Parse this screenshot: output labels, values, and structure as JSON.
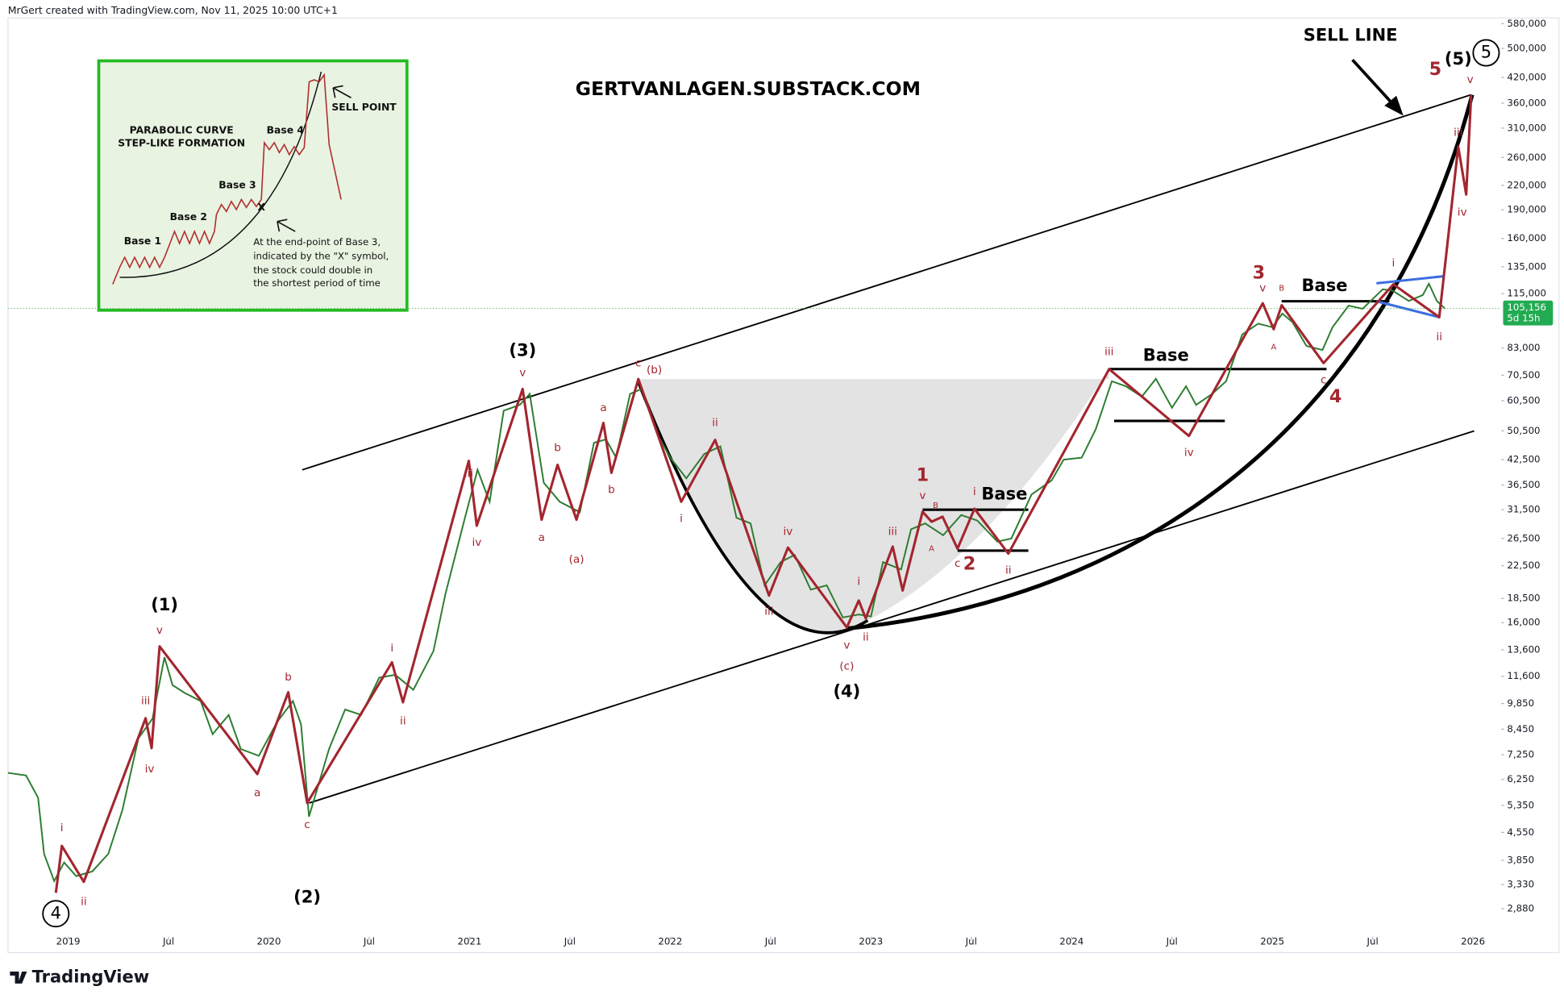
{
  "header": "MrGert created with TradingView.com, Nov 11, 2025 10:00 UTC+1",
  "brand": "TradingView",
  "inset": {
    "title": [
      "PARABOLIC CURVE",
      "STEP-LIKE FORMATION"
    ],
    "bases": [
      "Base 1",
      "Base 2",
      "Base 3",
      "Base 4"
    ],
    "x_mark": "X",
    "sell_point": "SELL POINT",
    "note": [
      "At the end-point of Base 3,",
      "indicated by the \"X\" symbol,",
      "the stock could double in",
      "the shortest period of time"
    ]
  },
  "chart_data": {
    "type": "line",
    "title": "GERTVANLAGEN.SUBSTACK.COM",
    "log_scale": true,
    "color": "#2e7d32",
    "x": [
      2018.7,
      2018.79,
      2018.85,
      2018.88,
      2018.93,
      2018.98,
      2019.04,
      2019.12,
      2019.2,
      2019.27,
      2019.35,
      2019.42,
      2019.48,
      2019.52,
      2019.58,
      2019.66,
      2019.72,
      2019.8,
      2019.86,
      2019.95,
      2020.04,
      2020.12,
      2020.16,
      2020.2,
      2020.3,
      2020.38,
      2020.46,
      2020.55,
      2020.63,
      2020.72,
      2020.82,
      2020.88,
      2020.97,
      2021.04,
      2021.1,
      2021.17,
      2021.25,
      2021.3,
      2021.37,
      2021.45,
      2021.55,
      2021.62,
      2021.68,
      2021.73,
      2021.8,
      2021.86,
      2021.94,
      2022.0,
      2022.08,
      2022.17,
      2022.25,
      2022.33,
      2022.4,
      2022.47,
      2022.55,
      2022.62,
      2022.7,
      2022.78,
      2022.86,
      2022.94,
      2023.0,
      2023.06,
      2023.15,
      2023.2,
      2023.27,
      2023.36,
      2023.45,
      2023.53,
      2023.63,
      2023.7,
      2023.8,
      2023.9,
      2023.96,
      2024.05,
      2024.12,
      2024.2,
      2024.27,
      2024.35,
      2024.42,
      2024.5,
      2024.57,
      2024.62,
      2024.7,
      2024.77,
      2024.85,
      2024.93,
      2025.0,
      2025.05,
      2025.1,
      2025.17,
      2025.25,
      2025.3,
      2025.38,
      2025.45,
      2025.55,
      2025.6,
      2025.68,
      2025.75,
      2025.78,
      2025.82,
      2025.86
    ],
    "values": [
      6500,
      6400,
      5600,
      4000,
      3400,
      3800,
      3500,
      3600,
      4000,
      5200,
      8000,
      9000,
      13000,
      11000,
      10500,
      10000,
      8200,
      9200,
      7500,
      7200,
      8800,
      10000,
      8700,
      5000,
      7500,
      9500,
      9200,
      11500,
      11700,
      10700,
      13500,
      19000,
      29000,
      40000,
      33000,
      57000,
      59000,
      63000,
      37000,
      33000,
      31000,
      47000,
      48000,
      43000,
      63000,
      65000,
      49000,
      43000,
      38000,
      44000,
      46000,
      30000,
      29000,
      20000,
      23000,
      24000,
      19500,
      20000,
      16500,
      16800,
      16600,
      23000,
      22000,
      28000,
      29000,
      27000,
      30500,
      29500,
      26000,
      26500,
      34500,
      37500,
      42500,
      43000,
      51000,
      68000,
      66000,
      62000,
      69000,
      58000,
      66000,
      59000,
      63000,
      68000,
      90000,
      96000,
      94000,
      102000,
      97000,
      84000,
      82000,
      94000,
      107000,
      105000,
      118000,
      117000,
      110000,
      114000,
      122000,
      110000,
      105156
    ],
    "xlim": [
      2018.7,
      2026.14
    ],
    "ylim": [
      2450,
      600000
    ],
    "xticks": [
      2019,
      {
        "value": 2019.5,
        "label": "Jul"
      },
      2020,
      {
        "value": 2020.5,
        "label": "Jul"
      },
      2021,
      {
        "value": 2021.5,
        "label": "Jul"
      },
      2022,
      {
        "value": 2022.5,
        "label": "Jul"
      },
      2023,
      {
        "value": 2023.5,
        "label": "Jul"
      },
      2024,
      {
        "value": 2024.5,
        "label": "Jul"
      },
      2025,
      {
        "value": 2025.5,
        "label": "Jul"
      },
      2026
    ],
    "yticks": [
      {
        "value": 580000,
        "label": "580,000"
      },
      {
        "value": 500000,
        "label": "500,000"
      },
      {
        "value": 420000,
        "label": "420,000"
      },
      {
        "value": 360000,
        "label": "360,000"
      },
      {
        "value": 310000,
        "label": "310,000"
      },
      {
        "value": 260000,
        "label": "260,000"
      },
      {
        "value": 220000,
        "label": "220,000"
      },
      {
        "value": 190000,
        "label": "190,000"
      },
      {
        "value": 160000,
        "label": "160,000"
      },
      {
        "value": 135000,
        "label": "135,000"
      },
      {
        "value": 115000,
        "label": "115,000"
      },
      {
        "value": 83000,
        "label": "83,000"
      },
      {
        "value": 70500,
        "label": "70,500"
      },
      {
        "value": 60500,
        "label": "60,500"
      },
      {
        "value": 50500,
        "label": "50,500"
      },
      {
        "value": 42500,
        "label": "42,500"
      },
      {
        "value": 36500,
        "label": "36,500"
      },
      {
        "value": 31500,
        "label": "31,500"
      },
      {
        "value": 26500,
        "label": "26,500"
      },
      {
        "value": 22500,
        "label": "22,500"
      },
      {
        "value": 18500,
        "label": "18,500"
      },
      {
        "value": 16000,
        "label": "16,000"
      },
      {
        "value": 13600,
        "label": "13,600"
      },
      {
        "value": 11600,
        "label": "11,600"
      },
      {
        "value": 9850,
        "label": "9,850"
      },
      {
        "value": 8450,
        "label": "8,450"
      },
      {
        "value": 7250,
        "label": "7,250"
      },
      {
        "value": 6250,
        "label": "6,250"
      },
      {
        "value": 5350,
        "label": "5,350"
      },
      {
        "value": 4550,
        "label": "4,550"
      },
      {
        "value": 3850,
        "label": "3,850"
      },
      {
        "value": 3330,
        "label": "3,330"
      },
      {
        "value": 2880,
        "label": "2,880"
      }
    ],
    "last_price": {
      "value": 105156,
      "label": "105,156"
    },
    "countdown": "5d 15h",
    "annotations": [
      "(1)",
      "(2)",
      "(3)",
      "(4)",
      "(5)",
      "4",
      "5",
      "SELL LINE",
      "Base",
      "Base",
      "Base",
      "1",
      "2",
      "3",
      "4",
      "5",
      "i",
      "ii",
      "iii",
      "iv",
      "v",
      "a",
      "b",
      "c",
      "i",
      "ii",
      "iii",
      "iv",
      "v",
      "a",
      "b",
      "c",
      "(a)",
      "a",
      "b",
      "c",
      "(b)",
      "ii",
      "i",
      "iii",
      "iv",
      "v",
      "(c)",
      "i",
      "ii",
      "iii",
      "v",
      "A",
      "B",
      "c",
      "i",
      "ii",
      "iii",
      "iv",
      "v",
      "B",
      "A",
      "c",
      "i",
      "ii",
      "iii",
      "iv",
      "v"
    ]
  }
}
